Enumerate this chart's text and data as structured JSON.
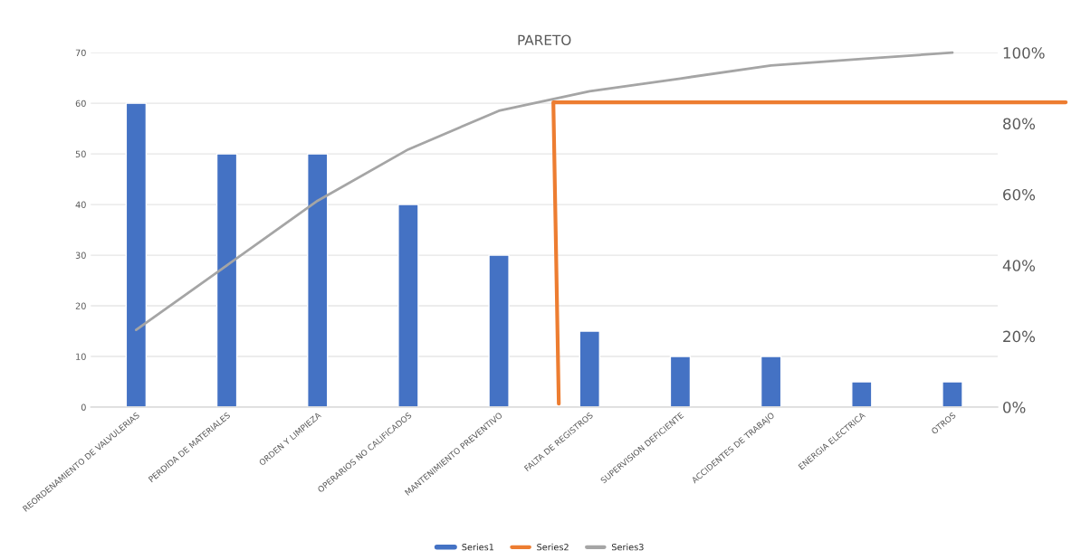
{
  "chart_data": {
    "type": "bar",
    "title": "PARETO",
    "categories": [
      "REORDENAMIENTO DE VALVULERIAS",
      "PERDIDA DE MATERIALES",
      "ORDEN Y LIMPIEZA",
      "OPERARIOS NO CALIFICADOS",
      "MANTENIMIENTO PREVENTIVO",
      "FALTA DE REGISTROS",
      "SUPERVISION DEFICIENTE",
      "ACCIDENTES DE TRABAJO",
      "ENERGIA ELECTRICA",
      "OTROS"
    ],
    "series": [
      {
        "name": "Series1",
        "color": "#4472c4",
        "values": [
          60,
          50,
          50,
          40,
          30,
          15,
          10,
          10,
          5,
          5
        ]
      },
      {
        "name": "Series3",
        "type": "line",
        "axis": "y2",
        "color": "#a5a5a5",
        "values": [
          21.8,
          40.0,
          58.2,
          72.7,
          83.6,
          89.1,
          92.7,
          96.4,
          98.2,
          100
        ]
      }
    ],
    "ylim": [
      0,
      70
    ],
    "yticks": [
      0,
      10,
      20,
      30,
      40,
      50,
      60,
      70
    ],
    "y2lim": [
      0,
      100
    ],
    "y2ticks": [
      {
        "value": 0,
        "label": "0%"
      },
      {
        "value": 20,
        "label": "20%"
      },
      {
        "value": 40,
        "label": "40%"
      },
      {
        "value": 60,
        "label": "60%"
      },
      {
        "value": 80,
        "label": "80%"
      },
      {
        "value": 100,
        "label": "100%"
      }
    ],
    "ref_lines": [
      {
        "axis": "y2",
        "value": 86,
        "label": "Series2",
        "color": "#ed7d31"
      }
    ],
    "grid": "y",
    "legend": "bottom"
  }
}
